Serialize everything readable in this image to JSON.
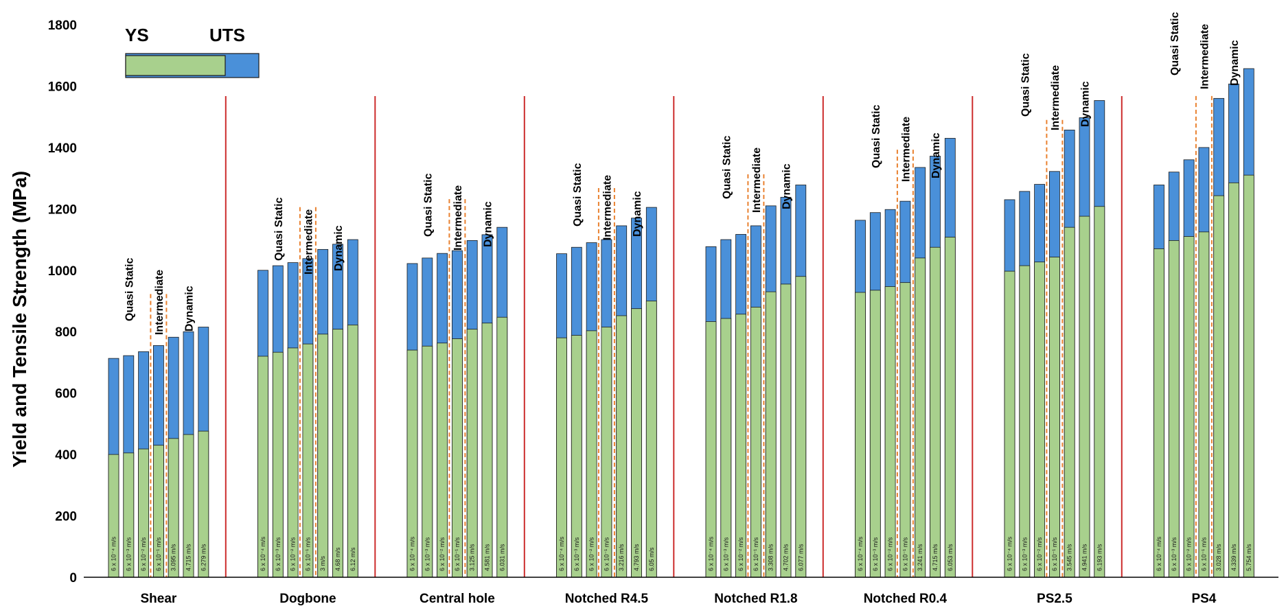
{
  "colors": {
    "ys": "#a8d08d",
    "uts": "#4a90d9",
    "group_divider": "#cc2b2b",
    "regime_divider": "#e9812f",
    "bar_stroke": "#1a1a1a"
  },
  "chart_data": {
    "type": "bar",
    "stacking": "overlay",
    "ylabel": "Yield and Tensile Strength (MPa)",
    "ylim": [
      0,
      1800
    ],
    "yticks": [
      0,
      200,
      400,
      600,
      800,
      1000,
      1200,
      1400,
      1600,
      1800
    ],
    "legend": {
      "position": "top-left",
      "entries": [
        "YS",
        "UTS"
      ]
    },
    "phase_labels": [
      "Quasi Static",
      "Intermediate",
      "Dynamic"
    ],
    "groups": [
      {
        "name": "Shear",
        "rates": [
          "6 x 10⁻⁴ m/s",
          "6 x 10⁻³ m/s",
          "6 x 10⁻² m/s",
          "6 x 10⁻¹ m/s",
          "3.095 m/s",
          "4.715 m/s",
          "6.279 m/s"
        ],
        "ys": [
          400,
          405,
          418,
          430,
          452,
          465,
          476
        ],
        "uts": [
          713,
          722,
          735,
          755,
          782,
          800,
          815
        ]
      },
      {
        "name": "Dogbone",
        "rates": [
          "6 x 10⁻⁴ m/s",
          "6 x 10⁻³ m/s",
          "6 x 10⁻² m/s",
          "6 x 10⁻¹ m/s",
          "3 m/s",
          "4.68 m/s",
          "6.12 m/s"
        ],
        "ys": [
          720,
          733,
          747,
          760,
          792,
          808,
          822
        ],
        "uts": [
          1000,
          1015,
          1025,
          1038,
          1068,
          1085,
          1100
        ]
      },
      {
        "name": "Central hole",
        "rates": [
          "6 x 10⁻⁴ m/s",
          "6 x 10⁻³ m/s",
          "6 x 10⁻² m/s",
          "6 x 10⁻¹ m/s",
          "3.125 m/s",
          "4.581 m/s",
          "6.031 m/s"
        ],
        "ys": [
          740,
          753,
          763,
          777,
          808,
          828,
          847
        ],
        "uts": [
          1022,
          1040,
          1055,
          1064,
          1097,
          1116,
          1140
        ]
      },
      {
        "name": "Notched R4.5",
        "rates": [
          "6 x 10⁻⁴ m/s",
          "6 x 10⁻³ m/s",
          "6 x 10⁻² m/s",
          "6 x 10⁻¹ m/s",
          "3.216 m/s",
          "4.793 m/s",
          "6.05 m/s"
        ],
        "ys": [
          780,
          788,
          803,
          815,
          852,
          875,
          900
        ],
        "uts": [
          1054,
          1075,
          1090,
          1100,
          1145,
          1170,
          1205
        ]
      },
      {
        "name": "Notched R1.8",
        "rates": [
          "6 x 10⁻⁴ m/s",
          "6 x 10⁻³ m/s",
          "6 x 10⁻² m/s",
          "6 x 10⁻¹ m/s",
          "3.308 m/s",
          "4.702 m/s",
          "6.077 m/s"
        ],
        "ys": [
          833,
          843,
          857,
          880,
          930,
          955,
          980
        ],
        "uts": [
          1077,
          1100,
          1117,
          1145,
          1210,
          1238,
          1278
        ]
      },
      {
        "name": "Notched R0.4",
        "rates": [
          "6 x 10⁻⁴ m/s",
          "6 x 10⁻³ m/s",
          "6 x 10⁻² m/s",
          "6 x 10⁻¹ m/s",
          "3.241 m/s",
          "4.715 m/s",
          "6.053 m/s"
        ],
        "ys": [
          928,
          935,
          947,
          960,
          1040,
          1075,
          1108
        ],
        "uts": [
          1163,
          1188,
          1198,
          1225,
          1335,
          1372,
          1430
        ]
      },
      {
        "name": "PS2.5",
        "rates": [
          "6 x 10⁻⁴ m/s",
          "6 x 10⁻³ m/s",
          "6 x 10⁻² m/s",
          "6 x 10⁻¹ m/s",
          "3.545 m/s",
          "4.941 m/s",
          "6.193 m/s"
        ],
        "ys": [
          997,
          1015,
          1027,
          1043,
          1140,
          1176,
          1208
        ],
        "uts": [
          1230,
          1257,
          1280,
          1322,
          1457,
          1497,
          1553
        ]
      },
      {
        "name": "PS4",
        "rates": [
          "6 x 10⁻⁴ m/s",
          "6 x 10⁻³ m/s",
          "6 x 10⁻² m/s",
          "6 x 10⁻¹ m/s",
          "3.028 m/s",
          "4.339 m/s",
          "5.754 m/s"
        ],
        "ys": [
          1070,
          1097,
          1110,
          1125,
          1243,
          1285,
          1310
        ],
        "uts": [
          1278,
          1320,
          1360,
          1400,
          1560,
          1607,
          1657
        ]
      }
    ]
  }
}
